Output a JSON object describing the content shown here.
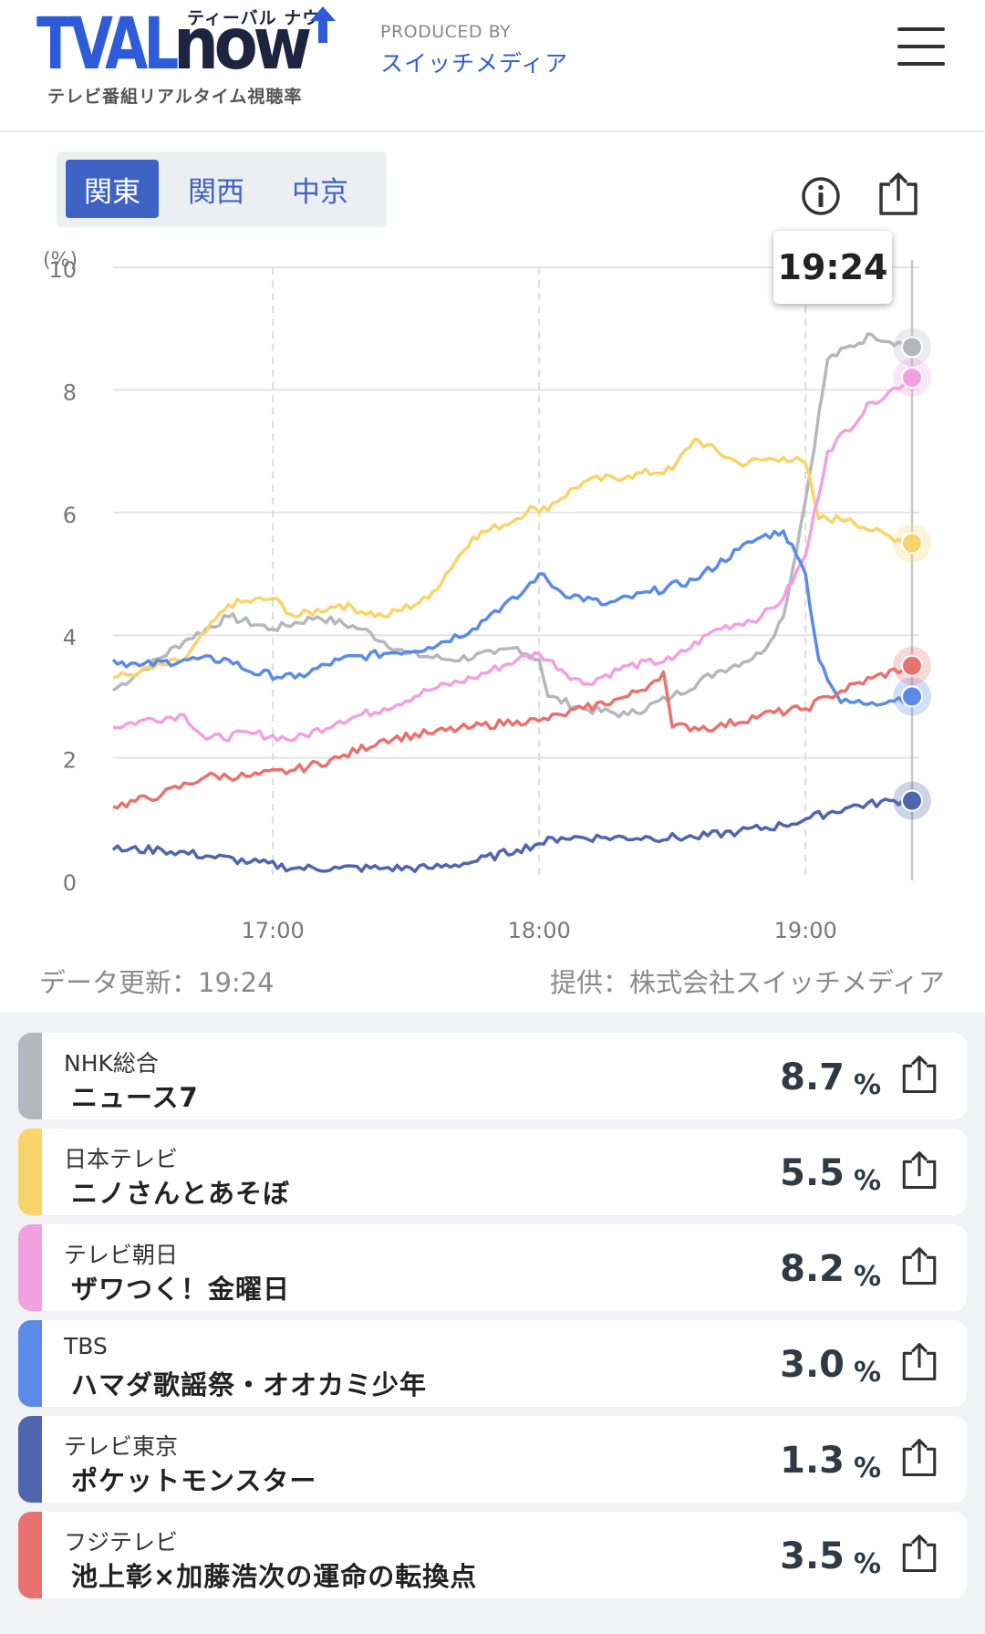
{
  "header": {
    "logo_tval": "TVAL",
    "logo_now": "now",
    "logo_kana": "ティーバル ナウ",
    "logo_sub": "テレビ番組リアルタイム視聴率",
    "produced_by": "PRODUCED BY",
    "producer": "スイッチメディア",
    "menu_icon": "hamburger-menu-icon"
  },
  "region_tabs": [
    {
      "label": "関東",
      "active": true
    },
    {
      "label": "関西",
      "active": false
    },
    {
      "label": "中京",
      "active": false
    }
  ],
  "toolbar": {
    "info_icon": "info-icon",
    "share_icon": "share-icon"
  },
  "tooltip_time": "19:24",
  "footer": {
    "update": "データ更新：19:24",
    "provider": "提供：株式会社スイッチメディア"
  },
  "chart_data": {
    "type": "line",
    "y_unit": "(%)",
    "ylim": [
      0,
      10
    ],
    "y_ticks": [
      "0",
      "2",
      "4",
      "6",
      "8",
      "10"
    ],
    "x_ticks": [
      "17:00",
      "18:00",
      "19:00"
    ],
    "x_range": [
      "16:24",
      "19:24"
    ],
    "grid": true,
    "series": [
      {
        "channel": "NHK総合",
        "color": "#b4b8be",
        "points": [
          [
            "16:24",
            3.1
          ],
          [
            "16:30",
            3.4
          ],
          [
            "16:40",
            3.9
          ],
          [
            "16:50",
            4.3
          ],
          [
            "17:00",
            4.1
          ],
          [
            "17:10",
            4.3
          ],
          [
            "17:20",
            4.1
          ],
          [
            "17:30",
            3.7
          ],
          [
            "17:40",
            3.6
          ],
          [
            "17:50",
            3.7
          ],
          [
            "17:55",
            3.8
          ],
          [
            "18:00",
            3.6
          ],
          [
            "18:02",
            3.0
          ],
          [
            "18:10",
            2.8
          ],
          [
            "18:20",
            2.7
          ],
          [
            "18:30",
            3.0
          ],
          [
            "18:40",
            3.4
          ],
          [
            "18:50",
            3.7
          ],
          [
            "18:55",
            4.3
          ],
          [
            "19:00",
            6.2
          ],
          [
            "19:05",
            8.5
          ],
          [
            "19:15",
            8.9
          ],
          [
            "19:24",
            8.7
          ]
        ]
      },
      {
        "channel": "日本テレビ",
        "color": "#f9d36b",
        "points": [
          [
            "16:24",
            3.3
          ],
          [
            "16:30",
            3.4
          ],
          [
            "16:40",
            3.6
          ],
          [
            "16:50",
            4.5
          ],
          [
            "17:00",
            4.6
          ],
          [
            "17:05",
            4.3
          ],
          [
            "17:15",
            4.5
          ],
          [
            "17:25",
            4.3
          ],
          [
            "17:35",
            4.6
          ],
          [
            "17:45",
            5.6
          ],
          [
            "17:55",
            5.9
          ],
          [
            "17:58",
            6.1
          ],
          [
            "18:00",
            6.0
          ],
          [
            "18:10",
            6.5
          ],
          [
            "18:20",
            6.6
          ],
          [
            "18:30",
            6.7
          ],
          [
            "18:35",
            7.2
          ],
          [
            "18:45",
            6.8
          ],
          [
            "18:55",
            6.9
          ],
          [
            "19:00",
            6.8
          ],
          [
            "19:03",
            5.9
          ],
          [
            "19:10",
            5.9
          ],
          [
            "19:15",
            5.7
          ],
          [
            "19:24",
            5.5
          ]
        ]
      },
      {
        "channel": "テレビ朝日",
        "color": "#f2a1e0",
        "points": [
          [
            "16:24",
            2.5
          ],
          [
            "16:30",
            2.6
          ],
          [
            "16:40",
            2.7
          ],
          [
            "16:45",
            2.3
          ],
          [
            "16:55",
            2.4
          ],
          [
            "17:05",
            2.3
          ],
          [
            "17:15",
            2.6
          ],
          [
            "17:25",
            2.8
          ],
          [
            "17:35",
            3.1
          ],
          [
            "17:45",
            3.3
          ],
          [
            "17:55",
            3.6
          ],
          [
            "18:00",
            3.7
          ],
          [
            "18:10",
            3.2
          ],
          [
            "18:20",
            3.5
          ],
          [
            "18:30",
            3.6
          ],
          [
            "18:40",
            4.1
          ],
          [
            "18:50",
            4.3
          ],
          [
            "18:55",
            4.6
          ],
          [
            "19:00",
            5.3
          ],
          [
            "19:05",
            7.0
          ],
          [
            "19:15",
            7.8
          ],
          [
            "19:24",
            8.2
          ]
        ]
      },
      {
        "channel": "TBS",
        "color": "#5b8ae8",
        "points": [
          [
            "16:24",
            3.6
          ],
          [
            "16:30",
            3.5
          ],
          [
            "16:40",
            3.6
          ],
          [
            "16:50",
            3.6
          ],
          [
            "16:55",
            3.4
          ],
          [
            "17:05",
            3.3
          ],
          [
            "17:15",
            3.6
          ],
          [
            "17:25",
            3.7
          ],
          [
            "17:35",
            3.8
          ],
          [
            "17:45",
            4.1
          ],
          [
            "17:50",
            4.4
          ],
          [
            "17:55",
            4.6
          ],
          [
            "18:00",
            5.0
          ],
          [
            "18:05",
            4.7
          ],
          [
            "18:15",
            4.5
          ],
          [
            "18:25",
            4.7
          ],
          [
            "18:35",
            4.9
          ],
          [
            "18:45",
            5.4
          ],
          [
            "18:50",
            5.6
          ],
          [
            "18:55",
            5.7
          ],
          [
            "18:58",
            5.3
          ],
          [
            "19:00",
            5.0
          ],
          [
            "19:03",
            3.6
          ],
          [
            "19:08",
            2.9
          ],
          [
            "19:15",
            2.9
          ],
          [
            "19:24",
            3.0
          ]
        ]
      },
      {
        "channel": "テレビ東京",
        "color": "#4f65ad",
        "points": [
          [
            "16:24",
            0.5
          ],
          [
            "16:35",
            0.5
          ],
          [
            "16:45",
            0.4
          ],
          [
            "16:55",
            0.3
          ],
          [
            "17:05",
            0.2
          ],
          [
            "17:15",
            0.2
          ],
          [
            "17:25",
            0.2
          ],
          [
            "17:35",
            0.2
          ],
          [
            "17:45",
            0.3
          ],
          [
            "17:55",
            0.5
          ],
          [
            "18:00",
            0.6
          ],
          [
            "18:05",
            0.7
          ],
          [
            "18:15",
            0.7
          ],
          [
            "18:25",
            0.7
          ],
          [
            "18:35",
            0.7
          ],
          [
            "18:45",
            0.8
          ],
          [
            "18:55",
            0.9
          ],
          [
            "19:00",
            1.0
          ],
          [
            "19:10",
            1.2
          ],
          [
            "19:20",
            1.3
          ],
          [
            "19:24",
            1.3
          ]
        ]
      },
      {
        "channel": "フジテレビ",
        "color": "#e8726f",
        "points": [
          [
            "16:24",
            1.2
          ],
          [
            "16:35",
            1.4
          ],
          [
            "16:45",
            1.7
          ],
          [
            "16:55",
            1.7
          ],
          [
            "17:05",
            1.8
          ],
          [
            "17:15",
            2.0
          ],
          [
            "17:25",
            2.3
          ],
          [
            "17:35",
            2.4
          ],
          [
            "17:45",
            2.5
          ],
          [
            "17:55",
            2.6
          ],
          [
            "18:00",
            2.6
          ],
          [
            "18:05",
            2.7
          ],
          [
            "18:10",
            2.8
          ],
          [
            "18:20",
            3.0
          ],
          [
            "18:25",
            3.2
          ],
          [
            "18:28",
            3.4
          ],
          [
            "18:30",
            2.5
          ],
          [
            "18:40",
            2.5
          ],
          [
            "18:50",
            2.7
          ],
          [
            "19:00",
            2.8
          ],
          [
            "19:05",
            3.0
          ],
          [
            "19:15",
            3.3
          ],
          [
            "19:24",
            3.5
          ]
        ]
      }
    ]
  },
  "channels": [
    {
      "name": "NHK総合",
      "program": "ニュース7",
      "rating": "8.7",
      "unit": "%",
      "color": "#b4b8be"
    },
    {
      "name": "日本テレビ",
      "program": "ニノさんとあそぼ",
      "rating": "5.5",
      "unit": "%",
      "color": "#f9d36b"
    },
    {
      "name": "テレビ朝日",
      "program": "ザワつく！金曜日",
      "rating": "8.2",
      "unit": "%",
      "color": "#f2a1e0"
    },
    {
      "name": "TBS",
      "program": "ハマダ歌謡祭・オオカミ少年",
      "rating": "3.0",
      "unit": "%",
      "color": "#5b8ae8"
    },
    {
      "name": "テレビ東京",
      "program": "ポケットモンスター",
      "rating": "1.3",
      "unit": "%",
      "color": "#4f65ad"
    },
    {
      "name": "フジテレビ",
      "program": "池上彰×加藤浩次の運命の転換点",
      "rating": "3.5",
      "unit": "%",
      "color": "#e8726f"
    }
  ]
}
